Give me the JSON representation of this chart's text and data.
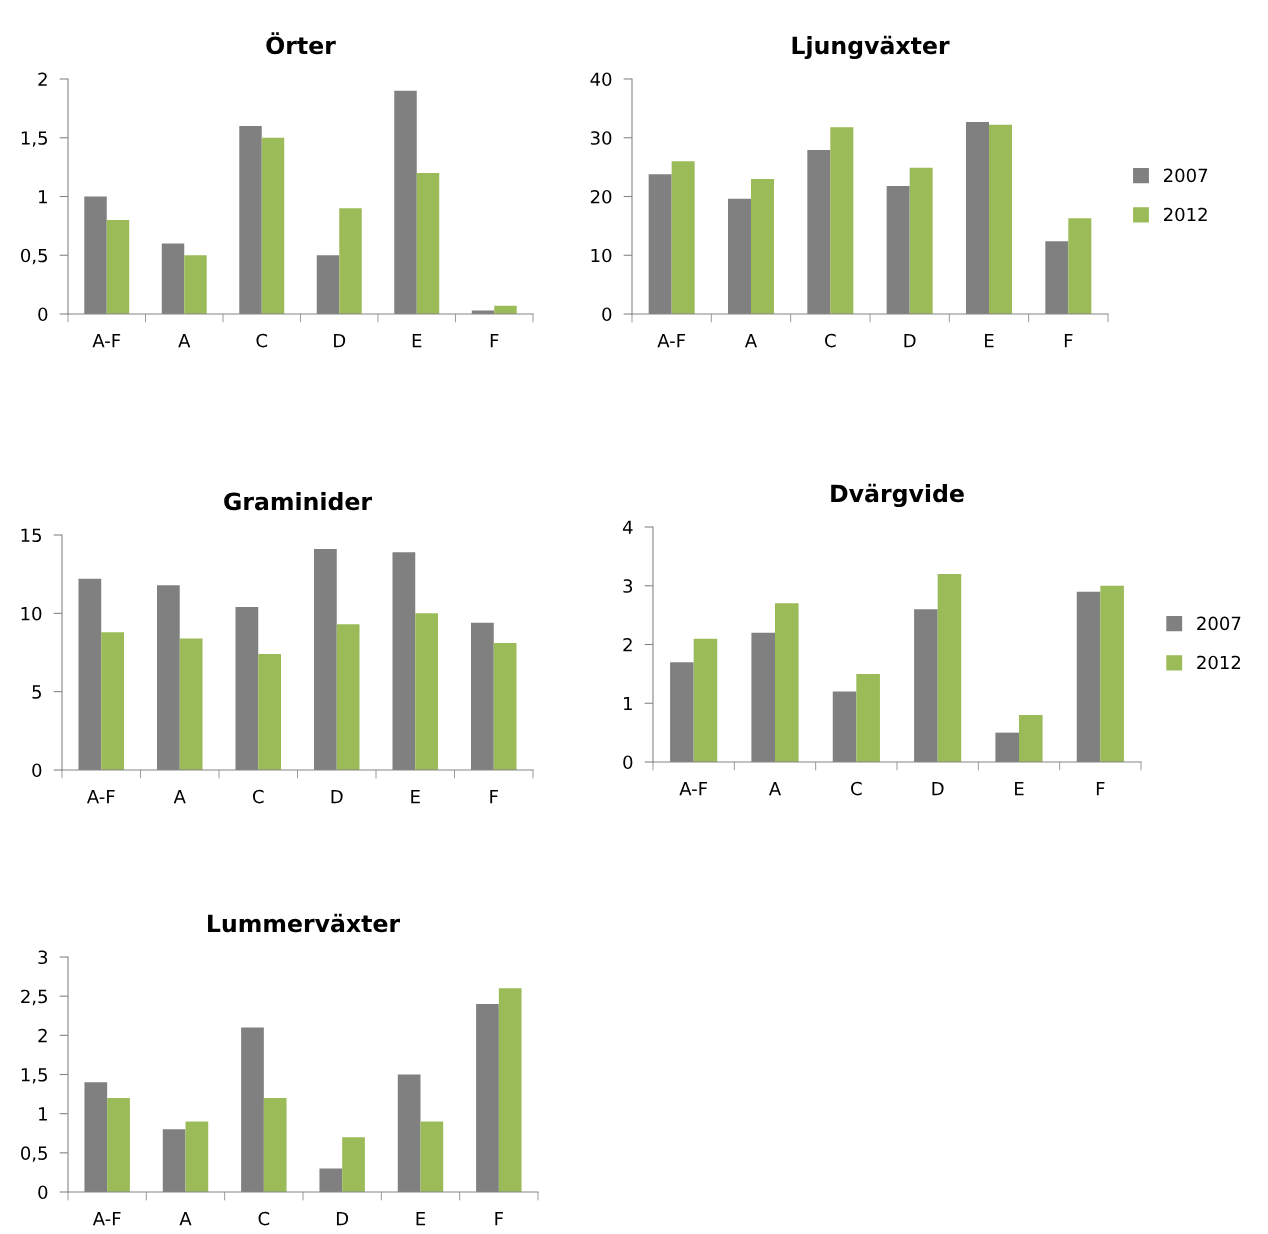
{
  "chart_data": [
    {
      "type": "bar",
      "title": "Örter",
      "categories": [
        "A-F",
        "A",
        "C",
        "D",
        "E",
        "F"
      ],
      "ylim": [
        0,
        2
      ],
      "yticks": [
        0,
        {
          "value": 0.5,
          "label": "0,5"
        },
        1,
        {
          "value": 1.5,
          "label": "1,5"
        },
        2
      ],
      "grid": false,
      "legend": false,
      "series": [
        {
          "color": "#808080",
          "values": [
            1.0,
            0.6,
            1.6,
            0.5,
            1.9,
            0.03
          ]
        },
        {
          "color": "#9bbb59",
          "values": [
            0.8,
            0.5,
            1.5,
            0.9,
            1.2,
            0.07
          ]
        }
      ]
    },
    {
      "type": "bar",
      "title": "Ljungväxter",
      "categories": [
        "A-F",
        "A",
        "C",
        "D",
        "E",
        "F"
      ],
      "ylim": [
        0,
        40
      ],
      "yticks": [
        0,
        10,
        20,
        30,
        40
      ],
      "grid": false,
      "legend": "right",
      "series": [
        {
          "name": "2007",
          "color": "#808080",
          "values": [
            23.8,
            19.6,
            27.9,
            21.8,
            32.7,
            12.4
          ]
        },
        {
          "name": "2012",
          "color": "#9bbb59",
          "values": [
            26.0,
            23.0,
            31.8,
            24.9,
            32.2,
            16.3
          ]
        }
      ]
    },
    {
      "type": "bar",
      "title": "Graminider",
      "categories": [
        "A-F",
        "A",
        "C",
        "D",
        "E",
        "F"
      ],
      "ylim": [
        0,
        15
      ],
      "yticks": [
        0,
        5,
        10,
        15
      ],
      "grid": false,
      "legend": false,
      "series": [
        {
          "color": "#808080",
          "values": [
            12.2,
            11.8,
            10.4,
            14.1,
            13.9,
            9.4
          ]
        },
        {
          "color": "#9bbb59",
          "values": [
            8.8,
            8.4,
            7.4,
            9.3,
            10.0,
            8.1
          ]
        }
      ]
    },
    {
      "type": "bar",
      "title": "Dvärgvide",
      "categories": [
        "A-F",
        "A",
        "C",
        "D",
        "E",
        "F"
      ],
      "ylim": [
        0,
        4
      ],
      "yticks": [
        0,
        1,
        2,
        3,
        4
      ],
      "grid": false,
      "legend": "right",
      "series": [
        {
          "name": "2007",
          "color": "#808080",
          "values": [
            1.7,
            2.2,
            1.2,
            2.6,
            0.5,
            2.9
          ]
        },
        {
          "name": "2012",
          "color": "#9bbb59",
          "values": [
            2.1,
            2.7,
            1.5,
            3.2,
            0.8,
            3.0
          ]
        }
      ]
    },
    {
      "type": "bar",
      "title": "Lummerväxter",
      "categories": [
        "A-F",
        "A",
        "C",
        "D",
        "E",
        "F"
      ],
      "ylim": [
        0,
        3
      ],
      "yticks": [
        0,
        {
          "value": 0.5,
          "label": "0,5"
        },
        1,
        {
          "value": 1.5,
          "label": "1,5"
        },
        2,
        {
          "value": 2.5,
          "label": "2,5"
        },
        3
      ],
      "grid": false,
      "legend": false,
      "series": [
        {
          "color": "#808080",
          "values": [
            1.4,
            0.8,
            2.1,
            0.3,
            1.5,
            2.4
          ]
        },
        {
          "color": "#9bbb59",
          "values": [
            1.2,
            0.9,
            1.2,
            0.7,
            0.9,
            2.6
          ]
        }
      ]
    }
  ]
}
